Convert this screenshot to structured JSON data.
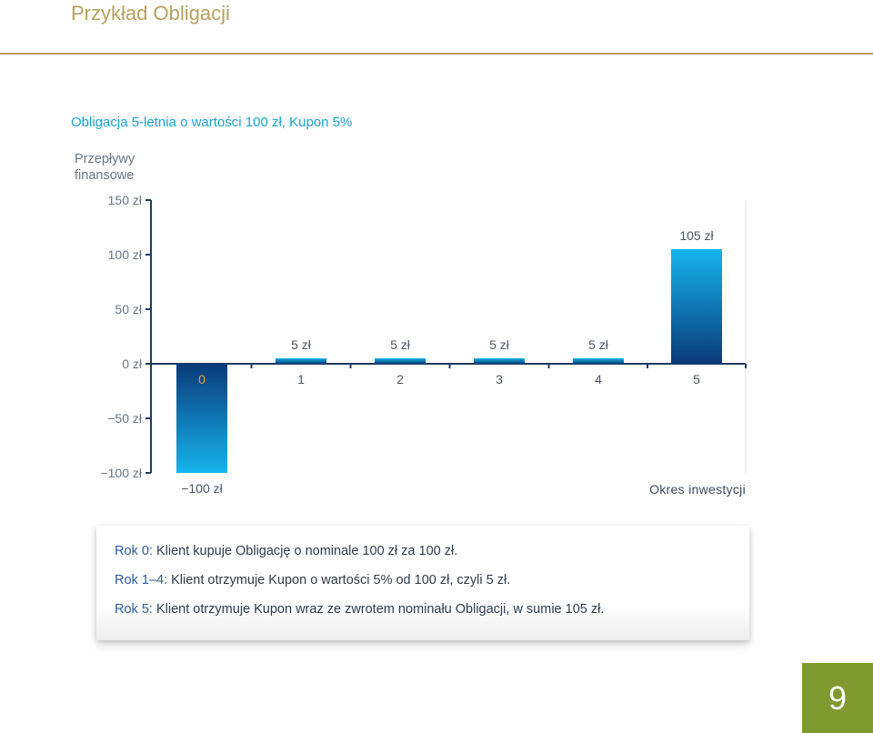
{
  "page": {
    "title": "Przykład Obligacji",
    "page_number": "9",
    "badge_color": "#7f9a2f",
    "accent_color": "#b5a25f"
  },
  "chart_data": {
    "type": "bar",
    "title": "Obligacja 5-letnia o wartości 100 zł, Kupon 5%",
    "ylabel": "Przepływy finansowe",
    "xlabel": "Okres inwestycji",
    "categories": [
      "0",
      "1",
      "2",
      "3",
      "4",
      "5"
    ],
    "values": [
      -100,
      5,
      5,
      5,
      5,
      105
    ],
    "value_labels": [
      "−100 zł",
      "5 zł",
      "5 zł",
      "5 zł",
      "5 zł",
      "105 zł"
    ],
    "yticks": [
      150,
      100,
      50,
      0,
      -50,
      -100
    ],
    "ytick_labels": [
      "150 zł",
      "100 zł",
      "50 zł",
      "0 zł",
      "−50 zł",
      "−100 zł"
    ],
    "ylim": [
      -100,
      150
    ],
    "bar_color_top": "#16b4ec",
    "bar_color_bottom": "#0a3a7a",
    "grid": false
  },
  "info": {
    "lines": [
      {
        "key": "Rok 0:",
        "text": " Klient kupuje Obligację o nominale 100 zł za 100 zł."
      },
      {
        "key": "Rok 1–4:",
        "text": " Klient otrzymuje Kupon o wartości 5% od 100 zł, czyli 5 zł."
      },
      {
        "key": "Rok 5:",
        "text": " Klient otrzymuje Kupon wraz ze zwrotem nominału Obligacji, w sumie 105 zł."
      }
    ]
  }
}
